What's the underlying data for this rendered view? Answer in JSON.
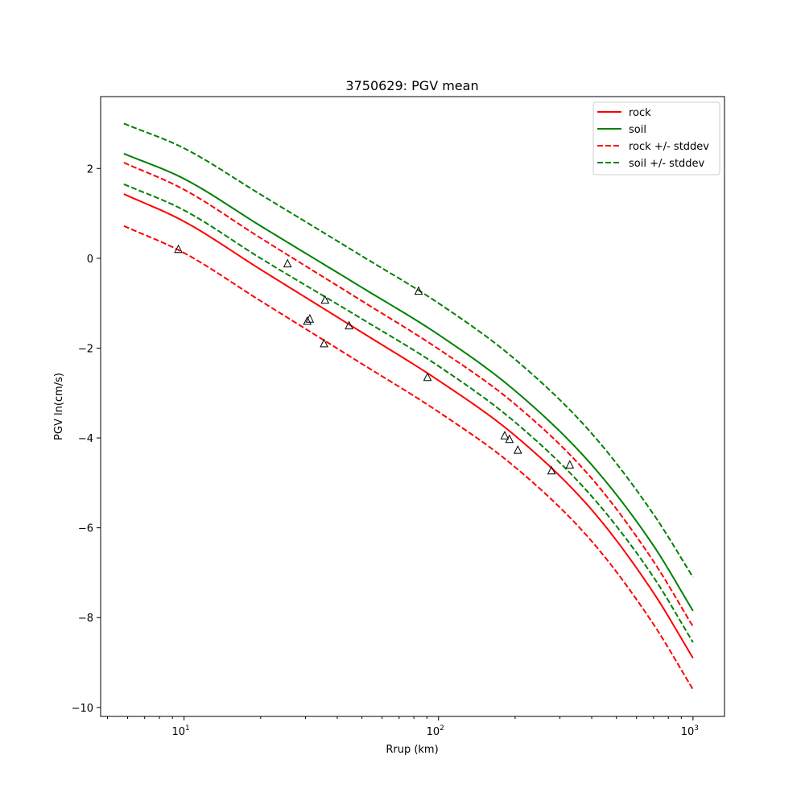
{
  "chart_data": {
    "type": "line",
    "title": "3750629: PGV mean",
    "xlabel": "Rrup (km)",
    "ylabel": "PGV ln(cm/s)",
    "xscale": "log",
    "xlim": [
      4.7,
      1330
    ],
    "ylim": [
      -10.2,
      3.6
    ],
    "x_ticks": [
      {
        "value": 10,
        "base": "10",
        "exp": "1"
      },
      {
        "value": 100,
        "base": "10",
        "exp": "2"
      },
      {
        "value": 1000,
        "base": "10",
        "exp": "3"
      }
    ],
    "y_ticks": [
      {
        "value": 2,
        "label": "2"
      },
      {
        "value": 0,
        "label": "0"
      },
      {
        "value": -2,
        "label": "−2"
      },
      {
        "value": -4,
        "label": "−4"
      },
      {
        "value": -6,
        "label": "−6"
      },
      {
        "value": -8,
        "label": "−8"
      },
      {
        "value": -10,
        "label": "−10"
      }
    ],
    "grid": false,
    "legend_position": "top-right",
    "series": [
      {
        "name": "rock",
        "color": "#ff0000",
        "dash": "solid",
        "x": [
          5.8,
          10,
          20,
          50,
          100,
          200,
          400,
          700,
          1000
        ],
        "y": [
          1.43,
          0.82,
          -0.25,
          -1.65,
          -2.72,
          -3.95,
          -5.6,
          -7.45,
          -8.9
        ]
      },
      {
        "name": "soil",
        "color": "#008000",
        "dash": "solid",
        "x": [
          5.8,
          10,
          20,
          50,
          100,
          200,
          400,
          700,
          1000
        ],
        "y": [
          2.33,
          1.77,
          0.72,
          -0.65,
          -1.7,
          -2.95,
          -4.6,
          -6.4,
          -7.85
        ]
      },
      {
        "name": "rock +/- stddev",
        "color": "#ff0000",
        "dash": "dashed",
        "x": [
          5.8,
          10,
          20,
          50,
          100,
          200,
          400,
          700,
          1000
        ],
        "y": [
          2.13,
          1.53,
          0.45,
          -0.95,
          -2.02,
          -3.25,
          -4.9,
          -6.75,
          -8.2
        ]
      },
      {
        "name": "",
        "color": "#ff0000",
        "dash": "dashed",
        "x": [
          5.8,
          10,
          20,
          50,
          100,
          200,
          400,
          700,
          1000
        ],
        "y": [
          0.72,
          0.12,
          -0.95,
          -2.35,
          -3.42,
          -4.65,
          -6.3,
          -8.15,
          -9.6
        ]
      },
      {
        "name": "soil +/- stddev",
        "color": "#008000",
        "dash": "dashed",
        "x": [
          5.8,
          10,
          20,
          50,
          100,
          200,
          400,
          700,
          1000
        ],
        "y": [
          3.0,
          2.45,
          1.42,
          0.05,
          -1.0,
          -2.25,
          -3.9,
          -5.7,
          -7.1
        ]
      },
      {
        "name": "",
        "color": "#008000",
        "dash": "dashed",
        "x": [
          5.8,
          10,
          20,
          50,
          100,
          200,
          400,
          700,
          1000
        ],
        "y": [
          1.65,
          1.07,
          0.0,
          -1.35,
          -2.4,
          -3.65,
          -5.3,
          -7.1,
          -8.55
        ]
      }
    ],
    "observations": {
      "marker": "triangle-open",
      "color": "#000000",
      "points": [
        {
          "x": 9.5,
          "y": 0.2
        },
        {
          "x": 25.5,
          "y": -0.12
        },
        {
          "x": 30.5,
          "y": -1.4
        },
        {
          "x": 31.2,
          "y": -1.35
        },
        {
          "x": 35.5,
          "y": -1.9
        },
        {
          "x": 35.8,
          "y": -0.93
        },
        {
          "x": 44.5,
          "y": -1.5
        },
        {
          "x": 83.5,
          "y": -0.73
        },
        {
          "x": 90.5,
          "y": -2.65
        },
        {
          "x": 182,
          "y": -3.95
        },
        {
          "x": 190,
          "y": -4.03
        },
        {
          "x": 205,
          "y": -4.27
        },
        {
          "x": 278,
          "y": -4.73
        },
        {
          "x": 328,
          "y": -4.6
        }
      ]
    }
  }
}
